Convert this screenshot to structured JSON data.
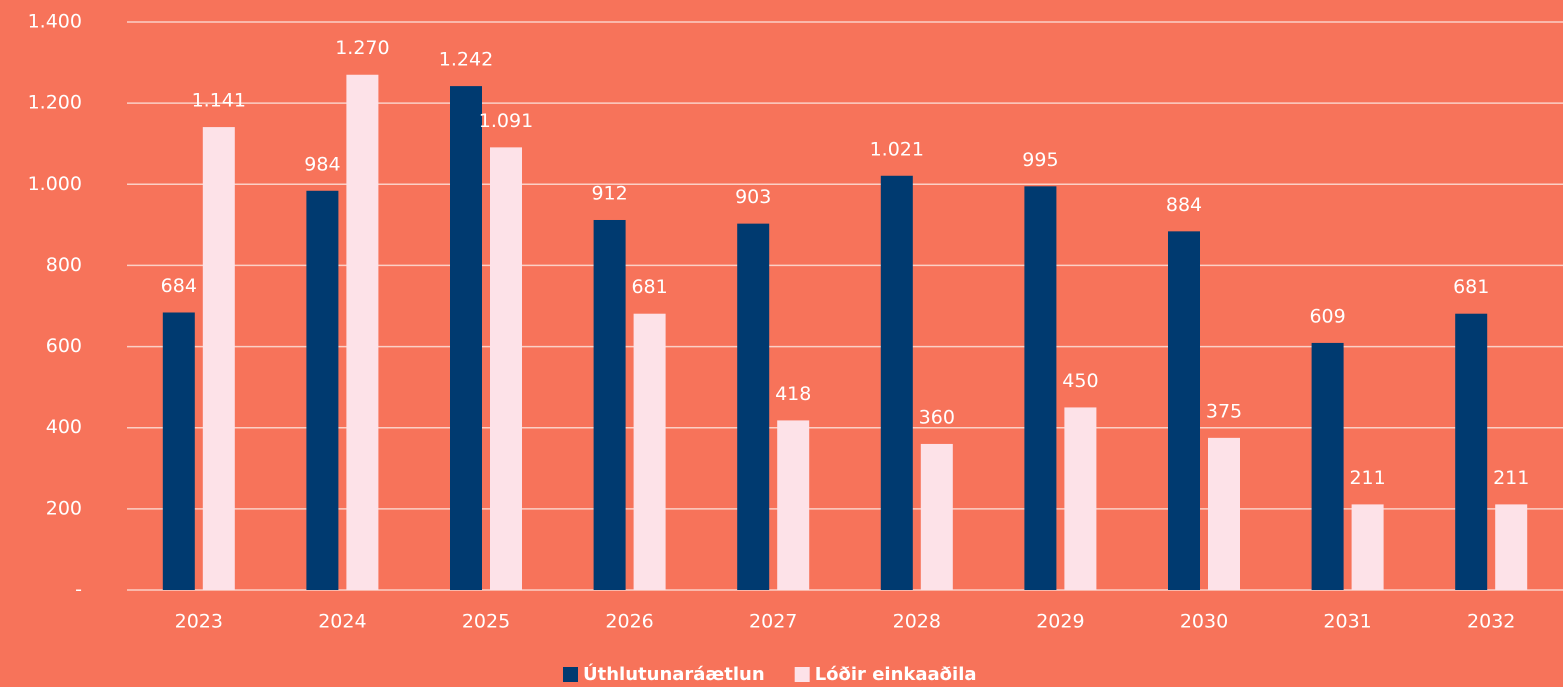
{
  "chart_data": {
    "type": "bar",
    "categories": [
      "2023",
      "2024",
      "2025",
      "2026",
      "2027",
      "2028",
      "2029",
      "2030",
      "2031",
      "2032"
    ],
    "series": [
      {
        "name": "Úthlutunaráætlun",
        "color": "#003a70",
        "values": [
          684,
          984,
          1242,
          912,
          903,
          1021,
          995,
          884,
          609,
          681
        ],
        "value_labels": [
          "684",
          "984",
          "1.242",
          "912",
          "903",
          "1.021",
          "995",
          "884",
          "609",
          "681"
        ]
      },
      {
        "name": "Lóðir einkaaðila",
        "color": "#fde2e8",
        "values": [
          1141,
          1270,
          1091,
          681,
          418,
          360,
          450,
          375,
          211,
          211
        ],
        "value_labels": [
          "1.141",
          "1.270",
          "1.091",
          "681",
          "418",
          "360",
          "450",
          "375",
          "211",
          "211"
        ]
      }
    ],
    "ylim": [
      0,
      1400
    ],
    "yticks": [
      {
        "value": 0,
        "label": "-"
      },
      200,
      400,
      600,
      800,
      {
        "value": 1000,
        "label": "1.000"
      },
      {
        "value": 1200,
        "label": "1.200"
      },
      {
        "value": 1400,
        "label": "1.400"
      }
    ],
    "grid": true,
    "legend": "bottom"
  }
}
